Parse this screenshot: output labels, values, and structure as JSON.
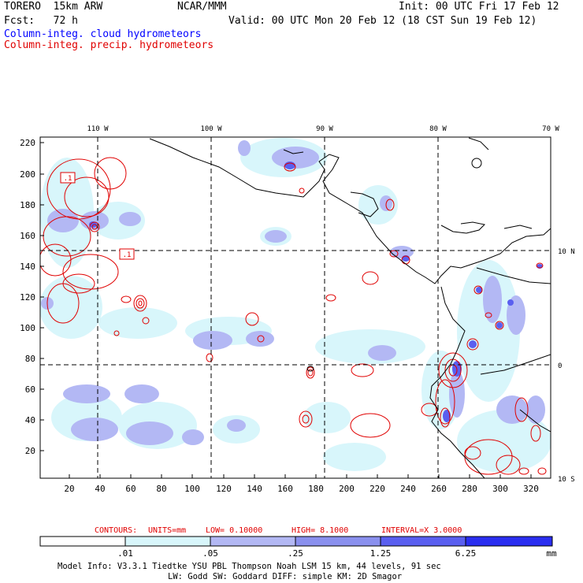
{
  "header": {
    "model": "TORERO  15km ARW",
    "org": "NCAR/MMM",
    "init": "Init: 00 UTC Fri 17 Feb 12",
    "fcst": "Fcst:   72 h",
    "valid": "Valid: 00 UTC Mon 20 Feb 12 (18 CST Sun 19 Feb 12)",
    "field_cloud": "Column-integ. cloud hydrometeors",
    "field_precip": "Column-integ. precip. hydrometeors"
  },
  "colors": {
    "cloud_text": "#0000ff",
    "precip_text": "#e00000",
    "contour": "#e00000",
    "fill_levels": [
      "#ffffff",
      "#d8f6fb",
      "#b3b8f4",
      "#8a90ee",
      "#5a5ff0",
      "#2a2ef0"
    ]
  },
  "axes": {
    "lon_labels": [
      "110 W",
      "100 W",
      "90 W",
      "80 W",
      "70 W"
    ],
    "lat_labels": [
      "10 N",
      "0",
      "10 S"
    ],
    "y_ticks": [
      "220",
      "200",
      "180",
      "160",
      "140",
      "120",
      "100",
      "80",
      "60",
      "40",
      "20"
    ],
    "x_ticks": [
      "20",
      "40",
      "60",
      "80",
      "100",
      "120",
      "140",
      "160",
      "180",
      "200",
      "220",
      "240",
      "260",
      "280",
      "300",
      "320"
    ]
  },
  "contour_info": {
    "prefix": "CONTOURS:",
    "units": "UNITS=mm",
    "low": "LOW= 0.10000",
    "high": "HIGH=  8.1000",
    "interval": "INTERVAL=X  3.0000",
    "box_labels": [
      ".1",
      ".1"
    ]
  },
  "colorbar": {
    "labels": [
      ".01",
      ".05",
      ".25",
      "1.25",
      "6.25"
    ],
    "unit": "mm"
  },
  "footer": {
    "line1": "Model Info: V3.3.1    Tiedtke YSU PBL  Thompson     Noah LSM  15 km,   44 levels,   91 sec",
    "line2": "LW: Godd SW: Goddard DIFF: simple KM: 2D Smagor"
  }
}
